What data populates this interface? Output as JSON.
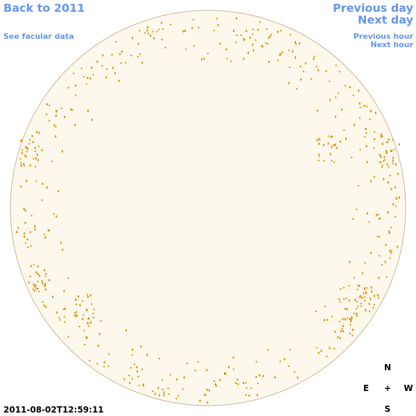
{
  "header": {
    "back_link": "Back to 2011",
    "facular_link": "See facular data",
    "previous_day": "Previous day",
    "next_day": "Next day",
    "previous_hour": "Previous hour",
    "next_hour": "Next hour"
  },
  "timestamp": "2011-08-02T12:59:11",
  "compass": {
    "north": "N",
    "east": "E",
    "center": "+",
    "west": "W",
    "south": "S"
  }
}
